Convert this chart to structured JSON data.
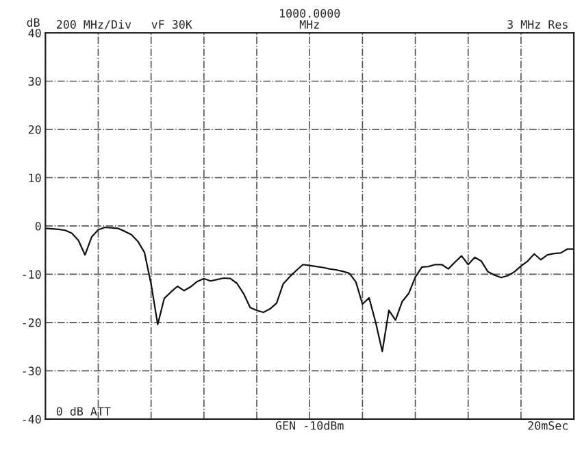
{
  "chart_data": {
    "type": "line",
    "ylabel": "dB",
    "categories": [
      null,
      null,
      null,
      null,
      null,
      null,
      null,
      null,
      null,
      null,
      null,
      null,
      null,
      null,
      null,
      null,
      null,
      null,
      null,
      null,
      null,
      null,
      null,
      null,
      null,
      null,
      null,
      null,
      null,
      null,
      null,
      null,
      null,
      null,
      null,
      null,
      null,
      null,
      null,
      null,
      null,
      null,
      null,
      null,
      null,
      null,
      null,
      null,
      null,
      null,
      null,
      null,
      null,
      null,
      null,
      null,
      null,
      null,
      null,
      null,
      null,
      null,
      null,
      null,
      null,
      null,
      null,
      null,
      null,
      null,
      null,
      null,
      null,
      null,
      null,
      null,
      null,
      null,
      null,
      null,
      null
    ],
    "series": [
      {
        "color": "#111111",
        "values": [
          -0.5,
          -0.6,
          -0.7,
          -0.9,
          -1.5,
          -3,
          -6,
          -2.3,
          -0.8,
          -0.3,
          -0.4,
          -0.5,
          -1.1,
          -1.8,
          -3.2,
          -5.5,
          -12,
          -20.4,
          -15,
          -13.7,
          -12.5,
          -13.4,
          -12.6,
          -11.5,
          -10.9,
          -11.4,
          -11.1,
          -10.8,
          -10.9,
          -11.9,
          -14,
          -16.9,
          -17.5,
          -17.9,
          -17.2,
          -16,
          -12,
          -10.5,
          -9.2,
          -8,
          -8.2,
          -8.4,
          -8.6,
          -8.9,
          -9.1,
          -9.4,
          -9.8,
          -11.6,
          -16.2,
          -14.9,
          -20,
          -26,
          -17.5,
          -19.5,
          -15.7,
          -14,
          -10.6,
          -8.5,
          -8.4,
          -8,
          -8,
          -8.9,
          -7.5,
          -6.2,
          -8,
          -6.5,
          -7.3,
          -9.5,
          -10.2,
          -10.7,
          -10.3,
          -9.5,
          -8.3,
          -7.3,
          -5.8,
          -7,
          -6,
          -5.7,
          -5.6,
          -4.8,
          -4.8
        ]
      }
    ],
    "ylim": [
      -40,
      40
    ],
    "yticks": [
      -40,
      -30,
      -20,
      -10,
      0,
      10,
      20,
      30,
      40
    ],
    "tick_labels": "y",
    "grid": true,
    "line_style": "solid",
    "marker": "none",
    "annotations": [
      "200 MHz/Div",
      "vF 30K",
      "1000.0000\nMHz",
      "3 MHz Res",
      "0 dB ATT",
      "GEN -10dBm",
      "20mSec"
    ]
  }
}
